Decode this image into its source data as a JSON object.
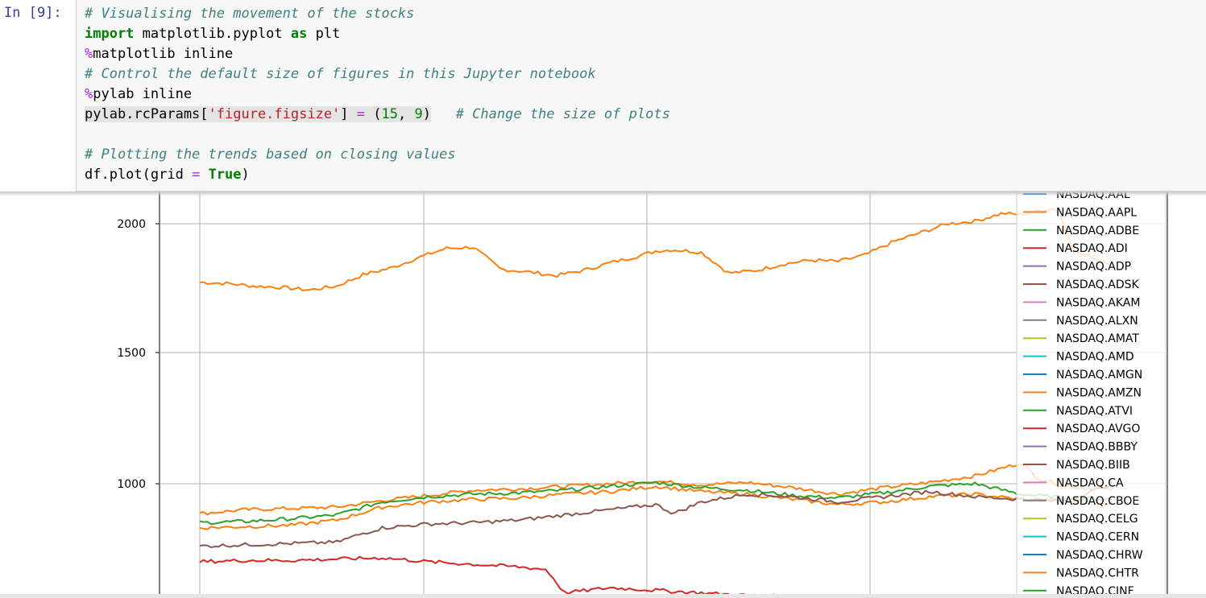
{
  "cell": {
    "prompt": "In [9]:",
    "code_lines": [
      "# Visualising the movement of the stocks",
      "import matplotlib.pyplot as plt",
      "%matplotlib inline",
      "# Control the default size of figures in this Jupyter notebook",
      "%pylab inline",
      "pylab.rcParams['figure.figsize'] = (15, 9)   # Change the size of plots",
      "",
      "# Plotting the trends based on closing values",
      "df.plot(grid = True)"
    ]
  },
  "chart_data": {
    "type": "line",
    "grid": true,
    "legend_placement": "right",
    "yticks": [
      1000,
      1500,
      2000
    ],
    "ytick_labels": [
      "1000",
      "1500",
      "2000"
    ],
    "x_gridlines": 5,
    "series": [
      {
        "name": "NASDAQ.AAL",
        "color": "#1f77b4"
      },
      {
        "name": "NASDAQ.AAPL",
        "color": "#ff7f0e"
      },
      {
        "name": "NASDAQ.ADBE",
        "color": "#2ca02c"
      },
      {
        "name": "NASDAQ.ADI",
        "color": "#d62728"
      },
      {
        "name": "NASDAQ.ADP",
        "color": "#9467bd"
      },
      {
        "name": "NASDAQ.ADSK",
        "color": "#8c564b"
      },
      {
        "name": "NASDAQ.AKAM",
        "color": "#e377c2"
      },
      {
        "name": "NASDAQ.ALXN",
        "color": "#7f7f7f"
      },
      {
        "name": "NASDAQ.AMAT",
        "color": "#bcbd22"
      },
      {
        "name": "NASDAQ.AMD",
        "color": "#17becf"
      },
      {
        "name": "NASDAQ.AMGN",
        "color": "#1f77b4"
      },
      {
        "name": "NASDAQ.AMZN",
        "color": "#ff7f0e"
      },
      {
        "name": "NASDAQ.ATVI",
        "color": "#2ca02c"
      },
      {
        "name": "NASDAQ.AVGO",
        "color": "#d62728"
      },
      {
        "name": "NASDAQ.BBBY",
        "color": "#9467bd"
      },
      {
        "name": "NASDAQ.BIIB",
        "color": "#8c564b"
      },
      {
        "name": "NASDAQ.CA",
        "color": "#e377c2"
      },
      {
        "name": "NASDAQ.CBOE",
        "color": "#7f7f7f"
      },
      {
        "name": "NASDAQ.CELG",
        "color": "#bcbd22"
      },
      {
        "name": "NASDAQ.CERN",
        "color": "#17becf"
      },
      {
        "name": "NASDAQ.CHRW",
        "color": "#1f77b4"
      },
      {
        "name": "NASDAQ.CHTR",
        "color": "#ff7f0e"
      },
      {
        "name": "NASDAQ.CINF",
        "color": "#2ca02c"
      }
    ],
    "lines": [
      {
        "label": "upper-orange",
        "color": "#ff7f0e",
        "x": [
          0,
          0.03,
          0.06,
          0.09,
          0.12,
          0.15,
          0.18,
          0.21,
          0.24,
          0.27,
          0.3,
          0.33,
          0.36,
          0.39,
          0.42,
          0.45,
          0.48,
          0.5,
          0.52,
          0.55,
          0.58,
          0.61,
          0.64,
          0.67,
          0.7,
          0.73,
          0.76,
          0.79,
          0.82,
          0.85,
          0.88,
          0.9,
          0.92,
          0.94,
          0.96,
          0.98,
          1.0
        ],
        "y": [
          1775,
          1770,
          1760,
          1755,
          1745,
          1760,
          1805,
          1830,
          1870,
          1905,
          1910,
          1825,
          1815,
          1800,
          1820,
          1850,
          1875,
          1895,
          1900,
          1890,
          1810,
          1820,
          1845,
          1860,
          1855,
          1880,
          1930,
          1965,
          2000,
          2010,
          2040,
          2035,
          2050,
          2060,
          1890,
          1870,
          1845
        ]
      },
      {
        "label": "mid-orange",
        "color": "#ff7f0e",
        "x": [
          0,
          0.05,
          0.1,
          0.15,
          0.2,
          0.25,
          0.3,
          0.35,
          0.4,
          0.45,
          0.5,
          0.55,
          0.6,
          0.65,
          0.7,
          0.75,
          0.8,
          0.85,
          0.88,
          0.9,
          0.92,
          0.95,
          1.0
        ],
        "y": [
          885,
          900,
          905,
          910,
          935,
          955,
          975,
          980,
          990,
          1000,
          1010,
          995,
          1005,
          985,
          960,
          985,
          1005,
          1030,
          1060,
          1080,
          1020,
          990,
          975
        ]
      },
      {
        "label": "green",
        "color": "#2ca02c",
        "x": [
          0,
          0.05,
          0.1,
          0.15,
          0.2,
          0.25,
          0.3,
          0.35,
          0.4,
          0.45,
          0.5,
          0.55,
          0.6,
          0.65,
          0.7,
          0.75,
          0.8,
          0.85,
          0.9,
          0.95,
          1.0
        ],
        "y": [
          850,
          855,
          865,
          880,
          930,
          950,
          960,
          965,
          975,
          990,
          1005,
          985,
          975,
          955,
          945,
          965,
          990,
          1000,
          960,
          945,
          940
        ]
      },
      {
        "label": "lower-orange",
        "color": "#ff7f0e",
        "x": [
          0,
          0.05,
          0.1,
          0.15,
          0.2,
          0.25,
          0.3,
          0.35,
          0.4,
          0.45,
          0.5,
          0.55,
          0.6,
          0.65,
          0.7,
          0.75,
          0.8,
          0.85,
          0.9,
          0.95,
          1.0
        ],
        "y": [
          830,
          835,
          840,
          860,
          910,
          930,
          940,
          945,
          960,
          970,
          990,
          970,
          960,
          940,
          920,
          930,
          950,
          960,
          940,
          930,
          925
        ]
      },
      {
        "label": "brown",
        "color": "#8c564b",
        "x": [
          0,
          0.05,
          0.1,
          0.15,
          0.18,
          0.2,
          0.25,
          0.3,
          0.35,
          0.4,
          0.45,
          0.5,
          0.52,
          0.55,
          0.6,
          0.65,
          0.7,
          0.75,
          0.8,
          0.85,
          0.9,
          0.95,
          1.0
        ],
        "y": [
          760,
          765,
          770,
          775,
          810,
          830,
          845,
          850,
          860,
          880,
          900,
          920,
          885,
          930,
          960,
          950,
          930,
          950,
          970,
          950,
          940,
          935,
          1000
        ]
      },
      {
        "label": "red",
        "color": "#d62728",
        "x": [
          0,
          0.05,
          0.1,
          0.15,
          0.2,
          0.25,
          0.3,
          0.35,
          0.38,
          0.4,
          0.45,
          0.5,
          0.55,
          0.6,
          0.65,
          0.68
        ],
        "y": [
          700,
          705,
          705,
          710,
          715,
          700,
          690,
          680,
          670,
          580,
          600,
          590,
          580,
          570,
          565,
          560
        ]
      }
    ]
  }
}
